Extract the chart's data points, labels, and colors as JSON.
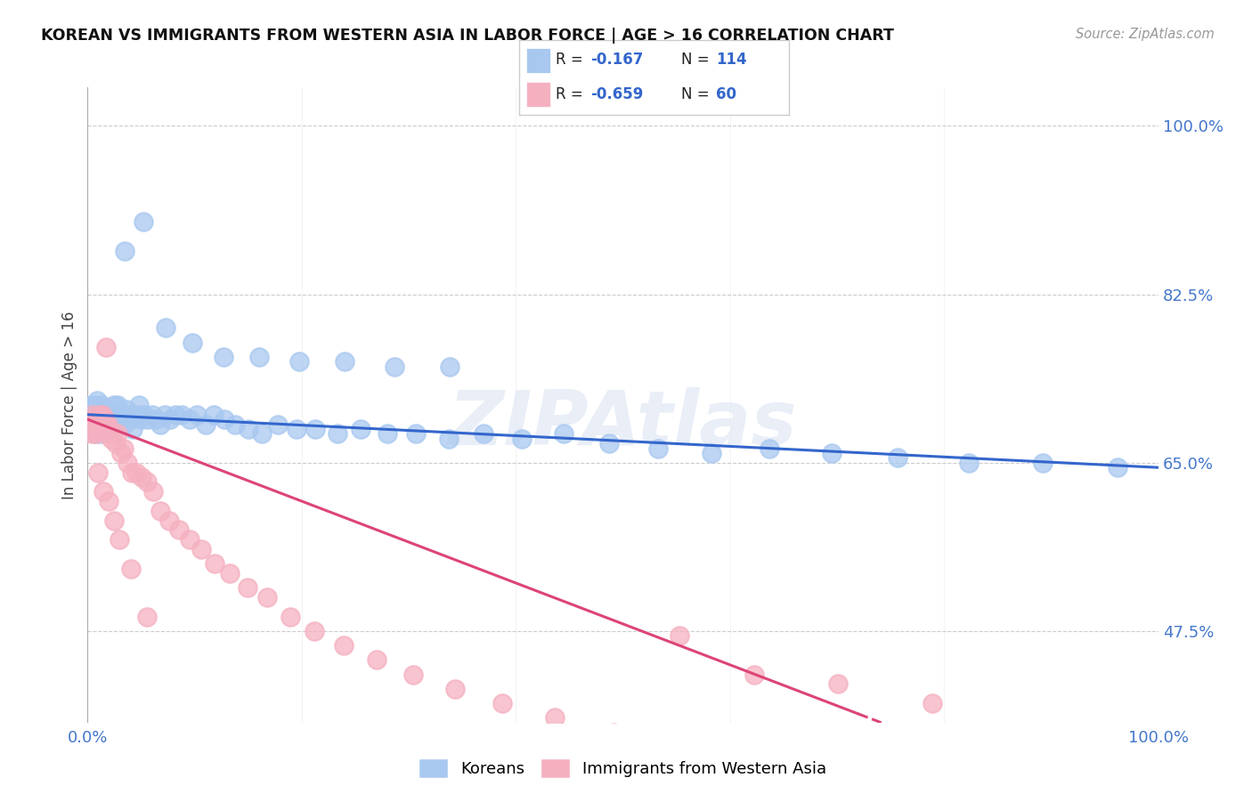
{
  "title": "KOREAN VS IMMIGRANTS FROM WESTERN ASIA IN LABOR FORCE | AGE > 16 CORRELATION CHART",
  "source": "Source: ZipAtlas.com",
  "ylabel": "In Labor Force | Age > 16",
  "xlim": [
    0.0,
    1.0
  ],
  "ylim": [
    0.38,
    1.04
  ],
  "yticks": [
    0.475,
    0.65,
    0.825,
    1.0
  ],
  "ytick_labels": [
    "47.5%",
    "65.0%",
    "82.5%",
    "100.0%"
  ],
  "xtick_positions": [
    0.0,
    1.0
  ],
  "xtick_labels": [
    "0.0%",
    "100.0%"
  ],
  "blue_R": "-0.167",
  "blue_N": "114",
  "pink_R": "-0.659",
  "pink_N": "60",
  "blue_scatter_color": "#a8c8f0",
  "pink_scatter_color": "#f5b0c0",
  "blue_line_color": "#3366cc",
  "pink_line_color": "#dd4477",
  "legend_label_blue": "Koreans",
  "legend_label_pink": "Immigrants from Western Asia",
  "blue_trend": [
    0.0,
    0.7,
    1.0,
    0.645
  ],
  "pink_trend_solid_end": 0.72,
  "pink_trend": [
    0.0,
    0.695,
    1.0,
    0.27
  ],
  "blue_scatter_x": [
    0.002,
    0.003,
    0.004,
    0.005,
    0.005,
    0.006,
    0.006,
    0.007,
    0.007,
    0.008,
    0.008,
    0.009,
    0.009,
    0.01,
    0.01,
    0.011,
    0.011,
    0.012,
    0.012,
    0.013,
    0.013,
    0.014,
    0.014,
    0.015,
    0.015,
    0.016,
    0.016,
    0.017,
    0.018,
    0.019,
    0.02,
    0.021,
    0.022,
    0.023,
    0.024,
    0.025,
    0.026,
    0.027,
    0.028,
    0.03,
    0.032,
    0.034,
    0.036,
    0.038,
    0.04,
    0.042,
    0.045,
    0.048,
    0.05,
    0.053,
    0.056,
    0.06,
    0.064,
    0.068,
    0.072,
    0.077,
    0.082,
    0.088,
    0.095,
    0.102,
    0.11,
    0.118,
    0.128,
    0.138,
    0.15,
    0.163,
    0.178,
    0.195,
    0.213,
    0.233,
    0.255,
    0.28,
    0.307,
    0.337,
    0.37,
    0.406,
    0.445,
    0.487,
    0.533,
    0.583,
    0.637,
    0.695,
    0.757,
    0.823,
    0.892,
    0.962,
    0.035,
    0.052,
    0.073,
    0.098,
    0.127,
    0.16,
    0.198,
    0.24,
    0.287,
    0.338
  ],
  "blue_scatter_y": [
    0.695,
    0.69,
    0.7,
    0.685,
    0.71,
    0.68,
    0.7,
    0.695,
    0.71,
    0.685,
    0.7,
    0.69,
    0.715,
    0.68,
    0.7,
    0.695,
    0.705,
    0.685,
    0.7,
    0.69,
    0.71,
    0.68,
    0.7,
    0.695,
    0.705,
    0.685,
    0.7,
    0.695,
    0.705,
    0.685,
    0.7,
    0.695,
    0.69,
    0.685,
    0.7,
    0.71,
    0.695,
    0.7,
    0.71,
    0.695,
    0.7,
    0.69,
    0.705,
    0.7,
    0.695,
    0.685,
    0.7,
    0.71,
    0.695,
    0.7,
    0.695,
    0.7,
    0.695,
    0.69,
    0.7,
    0.695,
    0.7,
    0.7,
    0.695,
    0.7,
    0.69,
    0.7,
    0.695,
    0.69,
    0.685,
    0.68,
    0.69,
    0.685,
    0.685,
    0.68,
    0.685,
    0.68,
    0.68,
    0.675,
    0.68,
    0.675,
    0.68,
    0.67,
    0.665,
    0.66,
    0.665,
    0.66,
    0.655,
    0.65,
    0.65,
    0.645,
    0.87,
    0.9,
    0.79,
    0.775,
    0.76,
    0.76,
    0.755,
    0.755,
    0.75,
    0.75
  ],
  "pink_scatter_x": [
    0.002,
    0.003,
    0.004,
    0.005,
    0.006,
    0.007,
    0.008,
    0.009,
    0.01,
    0.011,
    0.012,
    0.013,
    0.014,
    0.015,
    0.016,
    0.017,
    0.018,
    0.019,
    0.02,
    0.022,
    0.024,
    0.026,
    0.028,
    0.031,
    0.034,
    0.037,
    0.041,
    0.045,
    0.05,
    0.055,
    0.061,
    0.068,
    0.076,
    0.085,
    0.095,
    0.106,
    0.119,
    0.133,
    0.149,
    0.168,
    0.189,
    0.212,
    0.239,
    0.27,
    0.304,
    0.343,
    0.387,
    0.436,
    0.491,
    0.553,
    0.623,
    0.701,
    0.789,
    0.01,
    0.015,
    0.02,
    0.025,
    0.03,
    0.04,
    0.055
  ],
  "pink_scatter_y": [
    0.685,
    0.695,
    0.68,
    0.7,
    0.69,
    0.695,
    0.68,
    0.695,
    0.685,
    0.7,
    0.69,
    0.685,
    0.7,
    0.69,
    0.695,
    0.77,
    0.68,
    0.69,
    0.685,
    0.675,
    0.68,
    0.67,
    0.68,
    0.66,
    0.665,
    0.65,
    0.64,
    0.64,
    0.635,
    0.63,
    0.62,
    0.6,
    0.59,
    0.58,
    0.57,
    0.56,
    0.545,
    0.535,
    0.52,
    0.51,
    0.49,
    0.475,
    0.46,
    0.445,
    0.43,
    0.415,
    0.4,
    0.385,
    0.37,
    0.47,
    0.43,
    0.42,
    0.4,
    0.64,
    0.62,
    0.61,
    0.59,
    0.57,
    0.54,
    0.49
  ]
}
